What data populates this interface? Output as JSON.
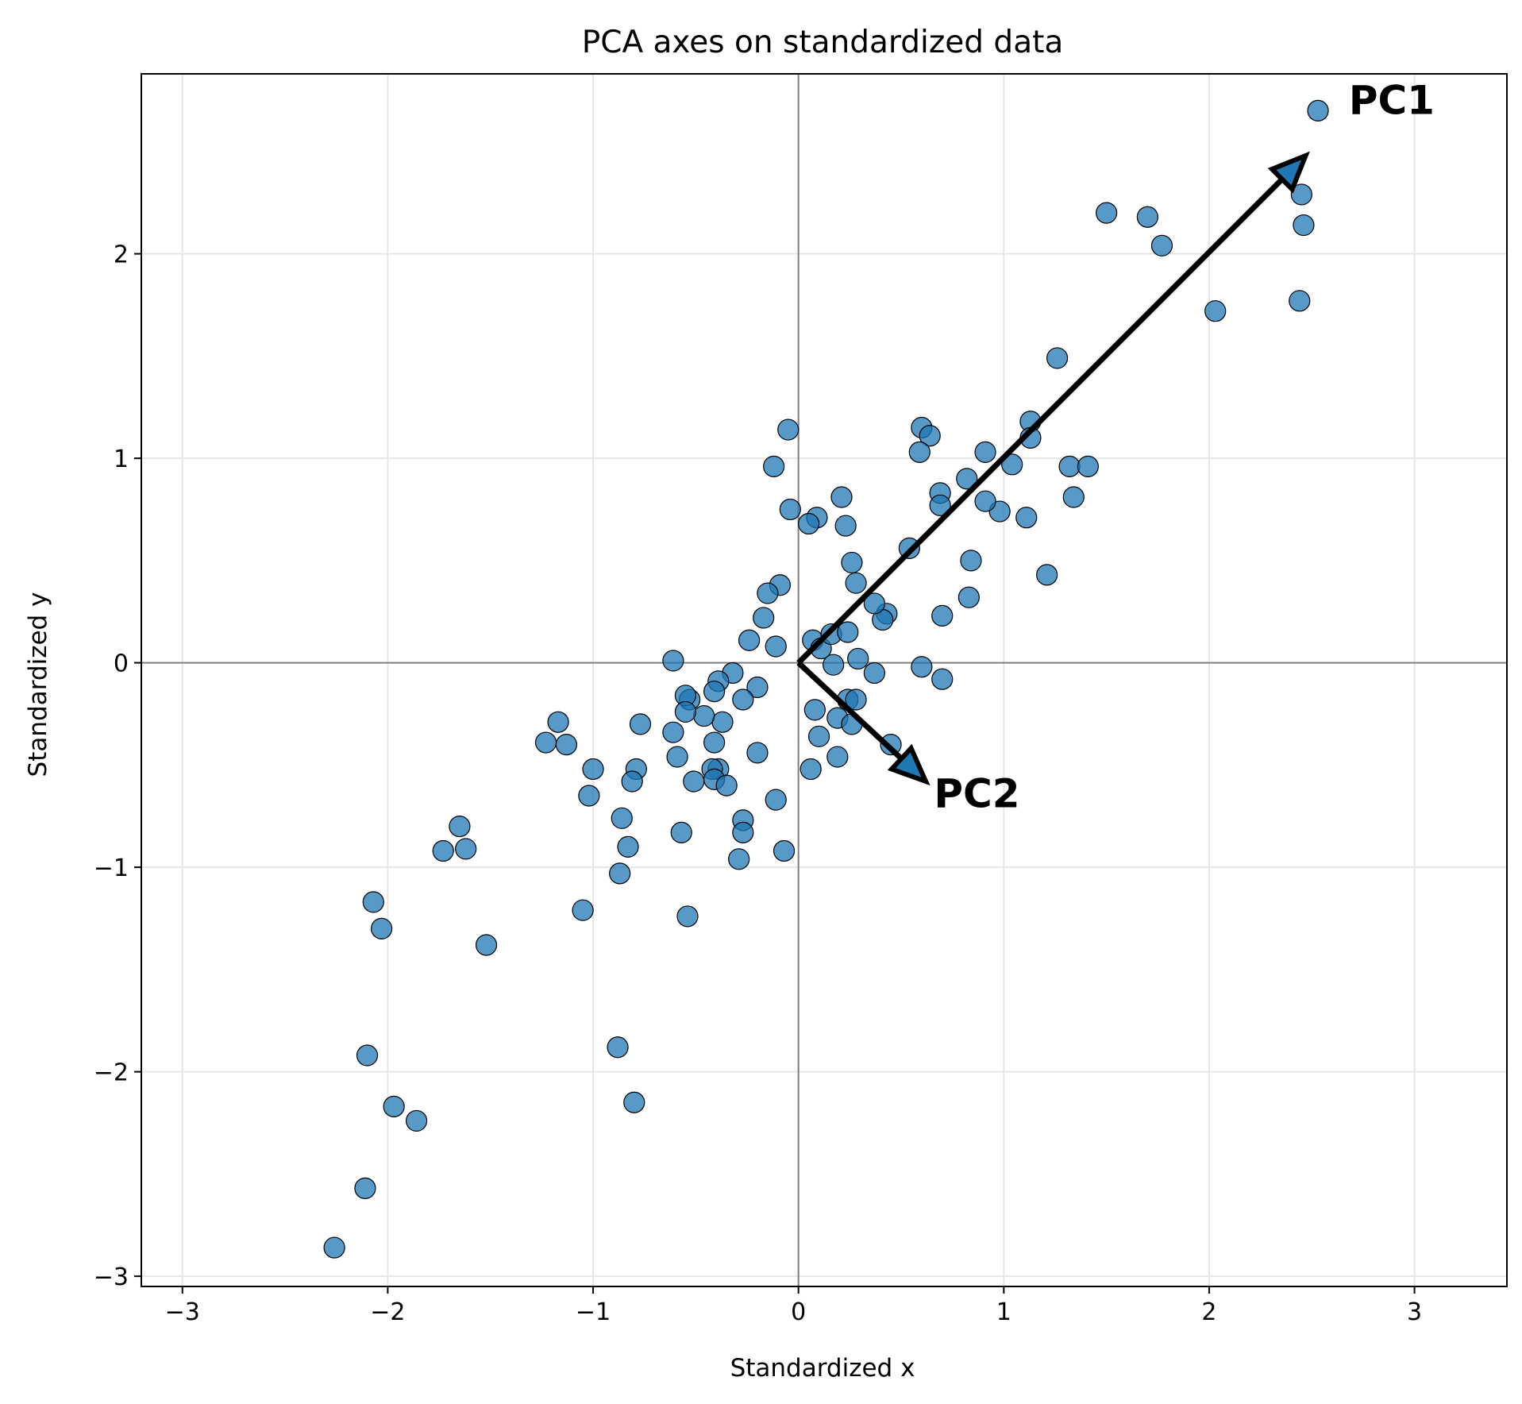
{
  "chart_data": {
    "type": "scatter",
    "title": "PCA axes on standardized data",
    "xlabel": "Standardized x",
    "ylabel": "Standardized y",
    "xlim": [
      -3.2,
      3.45
    ],
    "ylim": [
      -3.05,
      2.88
    ],
    "xticks": [
      -3,
      -2,
      -1,
      0,
      1,
      2,
      3
    ],
    "yticks": [
      -3,
      -2,
      -1,
      0,
      1,
      2
    ],
    "xtick_labels": [
      "−3",
      "−2",
      "−1",
      "0",
      "1",
      "2",
      "3"
    ],
    "ytick_labels": [
      "−3",
      "−2",
      "−1",
      "0",
      "1",
      "2"
    ],
    "grid": true,
    "point_color": "#1f77b4",
    "points": [
      [
        2.53,
        2.7
      ],
      [
        2.45,
        2.29
      ],
      [
        2.46,
        2.14
      ],
      [
        2.44,
        1.77
      ],
      [
        1.5,
        2.2
      ],
      [
        1.7,
        2.18
      ],
      [
        1.77,
        2.04
      ],
      [
        2.03,
        1.72
      ],
      [
        1.26,
        1.49
      ],
      [
        1.13,
        1.18
      ],
      [
        1.13,
        1.1
      ],
      [
        0.6,
        1.15
      ],
      [
        0.64,
        1.11
      ],
      [
        0.59,
        1.03
      ],
      [
        0.91,
        1.03
      ],
      [
        1.04,
        0.97
      ],
      [
        1.32,
        0.96
      ],
      [
        1.41,
        0.96
      ],
      [
        1.34,
        0.81
      ],
      [
        1.11,
        0.71
      ],
      [
        0.98,
        0.74
      ],
      [
        0.91,
        0.79
      ],
      [
        0.69,
        0.83
      ],
      [
        0.69,
        0.77
      ],
      [
        0.82,
        0.9
      ],
      [
        0.54,
        0.56
      ],
      [
        0.84,
        0.5
      ],
      [
        1.21,
        0.43
      ],
      [
        0.83,
        0.32
      ],
      [
        0.7,
        0.23
      ],
      [
        0.43,
        0.24
      ],
      [
        0.41,
        0.21
      ],
      [
        0.37,
        0.29
      ],
      [
        0.28,
        0.39
      ],
      [
        0.26,
        0.49
      ],
      [
        0.21,
        0.81
      ],
      [
        0.23,
        0.67
      ],
      [
        0.09,
        0.71
      ],
      [
        0.05,
        0.68
      ],
      [
        -0.04,
        0.75
      ],
      [
        -0.05,
        1.14
      ],
      [
        -0.12,
        0.96
      ],
      [
        -0.09,
        0.38
      ],
      [
        -0.15,
        0.34
      ],
      [
        -0.17,
        0.22
      ],
      [
        -0.24,
        0.11
      ],
      [
        -0.11,
        0.08
      ],
      [
        0.07,
        0.11
      ],
      [
        0.11,
        0.07
      ],
      [
        0.16,
        0.14
      ],
      [
        0.24,
        0.15
      ],
      [
        0.29,
        0.02
      ],
      [
        0.17,
        -0.01
      ],
      [
        0.37,
        -0.05
      ],
      [
        0.6,
        -0.02
      ],
      [
        0.7,
        -0.08
      ],
      [
        0.08,
        -0.23
      ],
      [
        0.19,
        -0.27
      ],
      [
        0.24,
        -0.18
      ],
      [
        0.28,
        -0.18
      ],
      [
        0.26,
        -0.3
      ],
      [
        0.1,
        -0.36
      ],
      [
        0.45,
        -0.4
      ],
      [
        0.19,
        -0.46
      ],
      [
        0.06,
        -0.52
      ],
      [
        -0.07,
        -0.92
      ],
      [
        -0.11,
        -0.67
      ],
      [
        -0.2,
        -0.44
      ],
      [
        -0.2,
        -0.12
      ],
      [
        -0.27,
        -0.18
      ],
      [
        -0.32,
        -0.05
      ],
      [
        -0.39,
        -0.09
      ],
      [
        -0.41,
        -0.14
      ],
      [
        -0.37,
        -0.29
      ],
      [
        -0.46,
        -0.26
      ],
      [
        -0.53,
        -0.18
      ],
      [
        -0.55,
        -0.16
      ],
      [
        -0.55,
        -0.24
      ],
      [
        -0.61,
        0.01
      ],
      [
        -0.61,
        -0.34
      ],
      [
        -0.59,
        -0.46
      ],
      [
        -0.41,
        -0.39
      ],
      [
        -0.39,
        -0.52
      ],
      [
        -0.42,
        -0.52
      ],
      [
        -0.41,
        -0.57
      ],
      [
        -0.35,
        -0.6
      ],
      [
        -0.51,
        -0.58
      ],
      [
        -0.27,
        -0.77
      ],
      [
        -0.27,
        -0.83
      ],
      [
        -0.29,
        -0.96
      ],
      [
        -0.57,
        -0.83
      ],
      [
        -0.54,
        -1.24
      ],
      [
        -0.77,
        -0.3
      ],
      [
        -0.79,
        -0.52
      ],
      [
        -0.81,
        -0.58
      ],
      [
        -0.86,
        -0.76
      ],
      [
        -0.83,
        -0.9
      ],
      [
        -0.87,
        -1.03
      ],
      [
        -1.0,
        -0.52
      ],
      [
        -1.02,
        -0.65
      ],
      [
        -1.05,
        -1.21
      ],
      [
        -1.17,
        -0.29
      ],
      [
        -1.13,
        -0.4
      ],
      [
        -1.23,
        -0.39
      ],
      [
        -0.88,
        -1.88
      ],
      [
        -0.8,
        -2.15
      ],
      [
        -1.52,
        -1.38
      ],
      [
        -1.65,
        -0.8
      ],
      [
        -1.62,
        -0.91
      ],
      [
        -1.73,
        -0.92
      ],
      [
        -2.07,
        -1.17
      ],
      [
        -2.03,
        -1.3
      ],
      [
        -2.1,
        -1.92
      ],
      [
        -1.97,
        -2.17
      ],
      [
        -1.86,
        -2.24
      ],
      [
        -2.11,
        -2.57
      ],
      [
        -2.26,
        -2.86
      ]
    ],
    "vectors": [
      {
        "name": "PC1",
        "from": [
          0,
          0
        ],
        "to": [
          2.47,
          2.48
        ],
        "label": "PC1",
        "label_at": [
          2.68,
          2.75
        ]
      },
      {
        "name": "PC2",
        "from": [
          0,
          0
        ],
        "to": [
          0.62,
          -0.58
        ],
        "label": "PC2",
        "label_at": [
          0.66,
          -0.64
        ]
      }
    ]
  }
}
